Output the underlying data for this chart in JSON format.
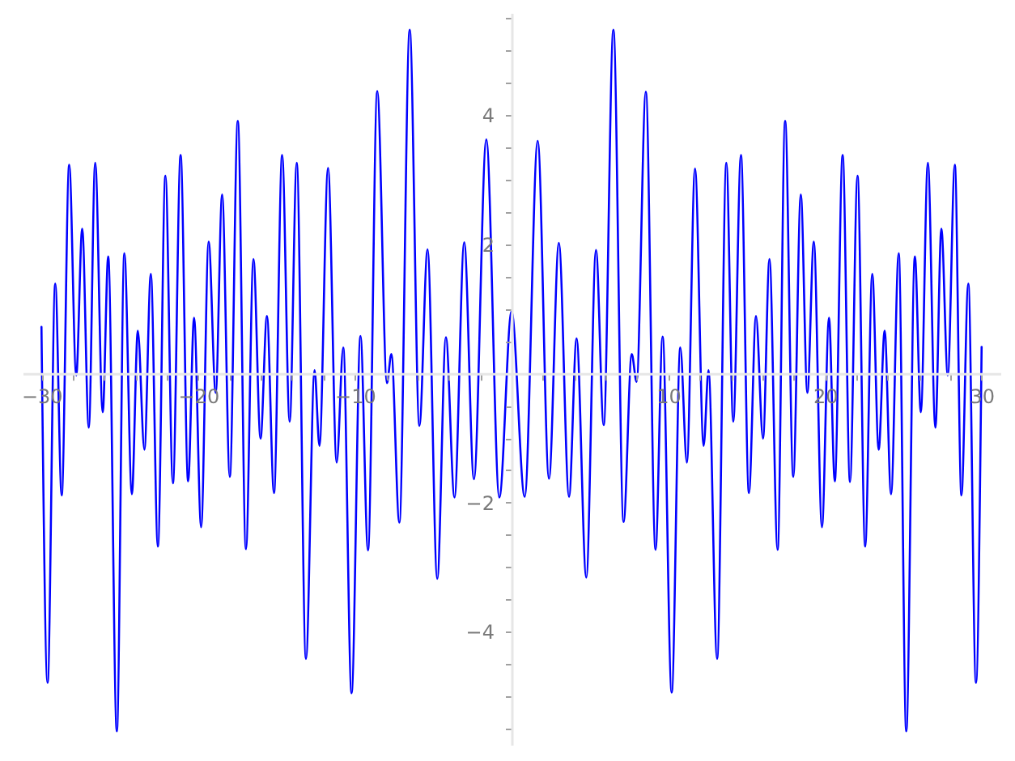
{
  "chart_data": {
    "type": "line",
    "color": "#0000ff",
    "line_style": "solid",
    "grid": false,
    "xlim": [
      -31.2,
      31.2
    ],
    "ylim": [
      -5.75,
      5.58
    ],
    "xticks": [
      {
        "value": -30,
        "label": "−30"
      },
      {
        "value": -28,
        "label": null
      },
      {
        "value": -26,
        "label": null
      },
      {
        "value": -24,
        "label": null
      },
      {
        "value": -22,
        "label": null
      },
      {
        "value": -20,
        "label": "−20"
      },
      {
        "value": -18,
        "label": null
      },
      {
        "value": -16,
        "label": null
      },
      {
        "value": -14,
        "label": null
      },
      {
        "value": -12,
        "label": null
      },
      {
        "value": -10,
        "label": "−10"
      },
      {
        "value": -8,
        "label": null
      },
      {
        "value": -6,
        "label": null
      },
      {
        "value": -4,
        "label": null
      },
      {
        "value": -2,
        "label": null
      },
      {
        "value": 2,
        "label": null
      },
      {
        "value": 4,
        "label": null
      },
      {
        "value": 6,
        "label": null
      },
      {
        "value": 8,
        "label": null
      },
      10,
      {
        "value": 12,
        "label": null
      },
      {
        "value": 14,
        "label": null
      },
      {
        "value": 16,
        "label": null
      },
      {
        "value": 18,
        "label": null
      },
      20,
      {
        "value": 22,
        "label": null
      },
      {
        "value": 24,
        "label": null
      },
      {
        "value": 26,
        "label": null
      },
      {
        "value": 28,
        "label": null
      },
      30
    ],
    "yticks": [
      {
        "value": -5.5,
        "label": null
      },
      {
        "value": -5,
        "label": null
      },
      {
        "value": -4.5,
        "label": null
      },
      {
        "value": -4,
        "label": "−4"
      },
      {
        "value": -3.5,
        "label": null
      },
      {
        "value": -3,
        "label": null
      },
      {
        "value": -2.5,
        "label": null
      },
      {
        "value": -2,
        "label": "−2"
      },
      {
        "value": -1.5,
        "label": null
      },
      {
        "value": -1,
        "label": null
      },
      {
        "value": -0.5,
        "label": null
      },
      {
        "value": 0.5,
        "label": null
      },
      {
        "value": 1,
        "label": null
      },
      {
        "value": 1.5,
        "label": null
      },
      2,
      {
        "value": 2.5,
        "label": null
      },
      {
        "value": 3,
        "label": null
      },
      {
        "value": 3.5,
        "label": null
      },
      4,
      {
        "value": 4.5,
        "label": null
      },
      {
        "value": 5,
        "label": null
      },
      {
        "value": 5.5,
        "label": null
      }
    ],
    "x": [
      -30,
      -29.61,
      -29.12,
      -28.71,
      -28.23,
      -27.78,
      -27.4,
      -26.98,
      -26.57,
      -26.09,
      -25.74,
      -25.19,
      -24.71,
      -24.23,
      -23.85,
      -23.43,
      -23.02,
      -22.57,
      -22.09,
      -21.61,
      -21.12,
      -20.64,
      -20.26,
      -19.81,
      -19.33,
      -18.88,
      -18.47,
      -17.98,
      -17.47,
      -16.95,
      -16.47,
      -16.02,
      -15.61,
      -15.16,
      -14.64,
      -14.16,
      -13.71,
      -13.12,
      -12.57,
      -12.26,
      -11.71,
      -11.16,
      -10.74,
      -10.21,
      -9.64,
      -9.16,
      -8.57,
      -7.95,
      -7.67,
      -7.16,
      -6.5,
      -5.88,
      -5.36,
      -4.74,
      -4.19,
      -3.64,
      -3.02,
      -2.4,
      -1.61,
      -0.78,
      0,
      0.84,
      1.67,
      2.39,
      3.02,
      3.67,
      4.15,
      4.77,
      5.39,
      5.88,
      6.5,
      7.15,
      7.67,
      7.98,
      8.57,
      9.19,
      9.64,
      10.22,
      10.77,
      11.19,
      11.71,
      12.26,
      12.57,
      13.12,
      13.71,
      14.15,
      14.64,
      15.15,
      15.6,
      16.05,
      16.46,
      16.98,
      17.46,
      17.98,
      18.46,
      18.88,
      19.29,
      19.81,
      20.26,
      20.63,
      21.13,
      21.6,
      22.08,
      22.57,
      23.02,
      23.43,
      23.81,
      24.22,
      24.71,
      25.19,
      25.74,
      26.12,
      26.57,
      27.05,
      27.43,
      27.84,
      28.29,
      28.71,
      29.15,
      29.64,
      30
    ],
    "values": [
      0.72,
      -4.79,
      1.39,
      -1.89,
      3.23,
      -0.03,
      2.24,
      -0.84,
      3.26,
      -0.6,
      1.81,
      -5.54,
      1.86,
      -1.87,
      0.66,
      -1.18,
      1.54,
      -2.68,
      3.06,
      -1.7,
      3.38,
      -1.67,
      0.86,
      -2.38,
      2.04,
      -0.3,
      2.77,
      -1.6,
      3.91,
      -2.72,
      1.77,
      -1.01,
      0.89,
      -1.85,
      3.38,
      -0.75,
      3.26,
      -4.42,
      0.05,
      -1.12,
      3.18,
      -1.38,
      0.4,
      -4.95,
      0.58,
      -2.74,
      4.37,
      -0.15,
      0.3,
      -2.31,
      5.32,
      -0.81,
      1.92,
      -3.18,
      0.56,
      -1.92,
      2.03,
      -1.64,
      3.62,
      -1.92,
      0.96,
      -1.91,
      3.6,
      -1.63,
      2.02,
      -1.91,
      0.54,
      -3.16,
      1.91,
      -0.8,
      5.32,
      -2.3,
      0.3,
      -0.13,
      4.36,
      -2.73,
      0.57,
      -4.94,
      0.4,
      -1.38,
      3.17,
      -1.12,
      0.05,
      -4.42,
      3.26,
      -0.75,
      3.38,
      -1.85,
      0.89,
      -1.01,
      1.77,
      -2.73,
      3.91,
      -1.6,
      2.77,
      -0.3,
      2.04,
      -2.38,
      0.86,
      -1.67,
      3.38,
      -1.68,
      3.06,
      -2.68,
      1.54,
      -1.18,
      0.66,
      -1.87,
      1.86,
      -5.54,
      1.81,
      -0.6,
      3.26,
      -0.84,
      2.24,
      -0.03,
      3.23,
      -1.89,
      1.39,
      -4.79,
      0.41
    ]
  }
}
